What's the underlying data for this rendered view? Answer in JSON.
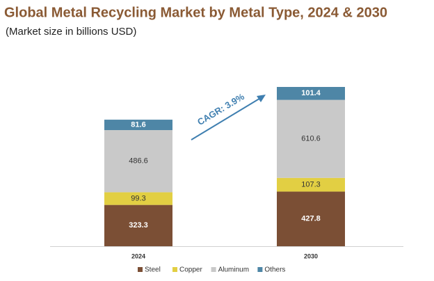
{
  "chart_data": {
    "type": "stacked_bar",
    "title": "Global Metal Recycling Market by Metal Type, 2024 & 2030",
    "subtitle": "(Market size in billions USD)",
    "annotation": "CAGR: 3.9%",
    "categories": [
      "2024",
      "2030"
    ],
    "series": [
      {
        "name": "Steel",
        "color": "#7b4f35",
        "label_color": "#ffffff",
        "values": [
          323.3,
          427.8
        ]
      },
      {
        "name": "Copper",
        "color": "#e2cf43",
        "label_color": "#333333",
        "values": [
          99.3,
          107.3
        ]
      },
      {
        "name": "Aluminum",
        "color": "#c9c9c9",
        "label_color": "#333333",
        "values": [
          486.6,
          610.6
        ]
      },
      {
        "name": "Others",
        "color": "#4e86a6",
        "label_color": "#ffffff",
        "values": [
          81.6,
          101.4
        ]
      }
    ],
    "legend": "bottom"
  }
}
